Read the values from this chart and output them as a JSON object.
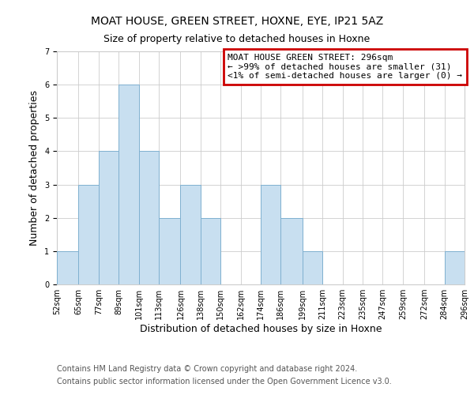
{
  "title": "MOAT HOUSE, GREEN STREET, HOXNE, EYE, IP21 5AZ",
  "subtitle": "Size of property relative to detached houses in Hoxne",
  "xlabel": "Distribution of detached houses by size in Hoxne",
  "ylabel": "Number of detached properties",
  "bar_color": "#c8dff0",
  "bar_edge_color": "#7fb0d0",
  "bin_edges": [
    52,
    65,
    77,
    89,
    101,
    113,
    126,
    138,
    150,
    162,
    174,
    186,
    199,
    211,
    223,
    235,
    247,
    259,
    272,
    284,
    296
  ],
  "counts": [
    1,
    3,
    4,
    6,
    4,
    2,
    3,
    2,
    0,
    0,
    3,
    2,
    1,
    0,
    0,
    0,
    0,
    0,
    0,
    1
  ],
  "ylim": [
    0,
    7
  ],
  "yticks": [
    0,
    1,
    2,
    3,
    4,
    5,
    6,
    7
  ],
  "legend_title": "MOAT HOUSE GREEN STREET: 296sqm",
  "legend_line1": "← >99% of detached houses are smaller (31)",
  "legend_line2": "<1% of semi-detached houses are larger (0) →",
  "legend_box_color": "#cc0000",
  "footer_line1": "Contains HM Land Registry data © Crown copyright and database right 2024.",
  "footer_line2": "Contains public sector information licensed under the Open Government Licence v3.0.",
  "grid_color": "#cccccc",
  "background_color": "#ffffff",
  "title_fontsize": 10,
  "subtitle_fontsize": 9,
  "tick_label_fontsize": 7,
  "axis_label_fontsize": 9,
  "legend_fontsize": 8,
  "footer_fontsize": 7
}
